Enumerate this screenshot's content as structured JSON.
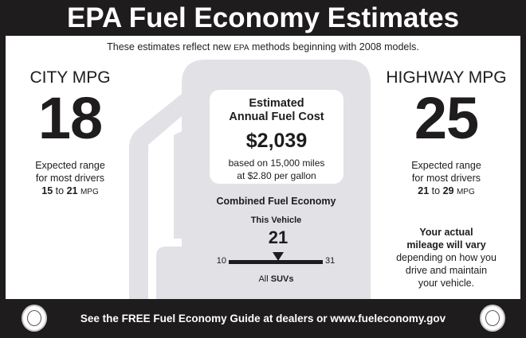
{
  "header": {
    "title": "EPA Fuel Economy Estimates"
  },
  "subtitle": {
    "before": "These estimates reflect new ",
    "epa": "EPA",
    "after": " methods beginning with 2008 models."
  },
  "city": {
    "label": "CITY MPG",
    "value": "18",
    "range_line1": "Expected range",
    "range_line2": "for most drivers",
    "range_low": "15",
    "range_to": "to",
    "range_high": "21",
    "range_unit": "MPG"
  },
  "highway": {
    "label": "HIGHWAY MPG",
    "value": "25",
    "range_line1": "Expected range",
    "range_line2": "for most drivers",
    "range_low": "21",
    "range_to": "to",
    "range_high": "29",
    "range_unit": "MPG"
  },
  "cost": {
    "heading1": "Estimated",
    "heading2": "Annual Fuel Cost",
    "value": "$2,039",
    "basis1": "based on 15,000 miles",
    "basis2": "at $2.80 per gallon"
  },
  "combined": {
    "title": "Combined Fuel Economy",
    "this_vehicle_label": "This Vehicle",
    "value": 21,
    "scale_min": 10,
    "scale_max": 31,
    "class_prefix": "All",
    "class_name": "SUVs"
  },
  "disclaimer": {
    "bold1": "Your actual",
    "bold2": "mileage will vary",
    "line1": "depending on how you",
    "line2": "drive and maintain",
    "line3": "your vehicle."
  },
  "footer": {
    "text": "See the FREE Fuel Economy Guide at dealers or www.fueleconomy.gov"
  },
  "logos": {
    "left": "EPA seal",
    "right": "Department of Energy seal"
  },
  "colors": {
    "frame": "#1e1c1d",
    "pump": "#e2e1e6",
    "panel": "#ffffff"
  }
}
